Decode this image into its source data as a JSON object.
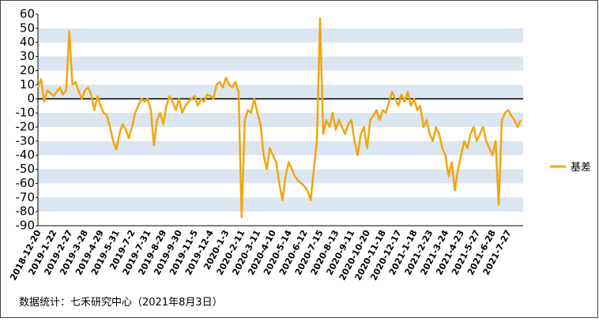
{
  "chart_data": {
    "type": "line",
    "categories": [
      "2018-12-20",
      null,
      null,
      null,
      null,
      "2019-1-22",
      null,
      null,
      null,
      null,
      "2019-2-27",
      null,
      null,
      null,
      null,
      "2019-3-28",
      null,
      null,
      null,
      null,
      "2019-4-29",
      null,
      null,
      null,
      null,
      "2019-5-31",
      null,
      null,
      null,
      null,
      "2019-7-2",
      null,
      null,
      null,
      null,
      "2019-7-31",
      null,
      null,
      null,
      null,
      "2019-8-29",
      null,
      null,
      null,
      null,
      "2019-9-30",
      null,
      null,
      null,
      null,
      "2019-11-5",
      null,
      null,
      null,
      null,
      "2019-12-4",
      null,
      null,
      null,
      null,
      "2020-1-3",
      null,
      null,
      null,
      null,
      "2020-2-11",
      null,
      null,
      null,
      null,
      "2020-3-11",
      null,
      null,
      null,
      null,
      "2020-4-10",
      null,
      null,
      null,
      null,
      "2020-5-14",
      null,
      null,
      null,
      null,
      "2020-6-12",
      null,
      null,
      null,
      null,
      "2020-7-15",
      null,
      null,
      null,
      null,
      "2020-8-13",
      null,
      null,
      null,
      null,
      "2020-9-11",
      null,
      null,
      null,
      null,
      "2020-10-20",
      null,
      null,
      null,
      null,
      "2020-11-18",
      null,
      null,
      null,
      null,
      "2020-12-17",
      null,
      null,
      null,
      null,
      "2021-1-18",
      null,
      null,
      null,
      null,
      "2021-2-23",
      null,
      null,
      null,
      null,
      "2021-3-24",
      null,
      null,
      null,
      null,
      "2021-4-23",
      null,
      null,
      null,
      null,
      "2021-5-27",
      null,
      null,
      null,
      null,
      "2021-6-28",
      null,
      null,
      null,
      null,
      "2021-7-27",
      null,
      null,
      null,
      null
    ],
    "series": [
      {
        "name": "基差",
        "color": "#f2a60d",
        "values": [
          8,
          14,
          -2,
          6,
          4,
          2,
          5,
          8,
          3,
          6,
          48,
          10,
          12,
          5,
          0,
          6,
          8,
          3,
          -8,
          2,
          -5,
          -10,
          -12,
          -20,
          -30,
          -36,
          -25,
          -18,
          -22,
          -28,
          -20,
          -10,
          -5,
          0,
          -2,
          0,
          -8,
          -33,
          -15,
          -10,
          -18,
          -5,
          2,
          -2,
          -8,
          0,
          -10,
          -5,
          -2,
          0,
          2,
          -5,
          0,
          -2,
          3,
          2,
          0,
          10,
          12,
          8,
          15,
          10,
          8,
          12,
          5,
          -84,
          -15,
          -8,
          -10,
          0,
          -10,
          -18,
          -40,
          -50,
          -35,
          -40,
          -45,
          -60,
          -72,
          -55,
          -45,
          -50,
          -55,
          -58,
          -60,
          -62,
          -65,
          -72,
          -50,
          -30,
          57,
          -25,
          -15,
          -20,
          -10,
          -22,
          -15,
          -20,
          -25,
          -18,
          -15,
          -30,
          -40,
          -25,
          -20,
          -35,
          -15,
          -12,
          -8,
          -15,
          -8,
          -10,
          -2,
          5,
          0,
          -5,
          3,
          -2,
          5,
          -5,
          0,
          -8,
          -5,
          -20,
          -15,
          -25,
          -30,
          -20,
          -25,
          -35,
          -40,
          -55,
          -45,
          -65,
          -50,
          -40,
          -30,
          -35,
          -25,
          -20,
          -30,
          -25,
          -20,
          -30,
          -35,
          -40,
          -30,
          -75,
          -15,
          -10,
          -8,
          -12,
          -15,
          -20,
          -15
        ]
      }
    ],
    "ylim": [
      -90,
      60
    ],
    "yticks": [
      -90,
      -80,
      -70,
      -60,
      -50,
      -40,
      -30,
      -20,
      -10,
      0,
      10,
      20,
      30,
      40,
      50,
      60
    ],
    "grid": "bands",
    "legend": "right",
    "source": "数据统计：七禾研究中心（2021年8月3日）"
  }
}
